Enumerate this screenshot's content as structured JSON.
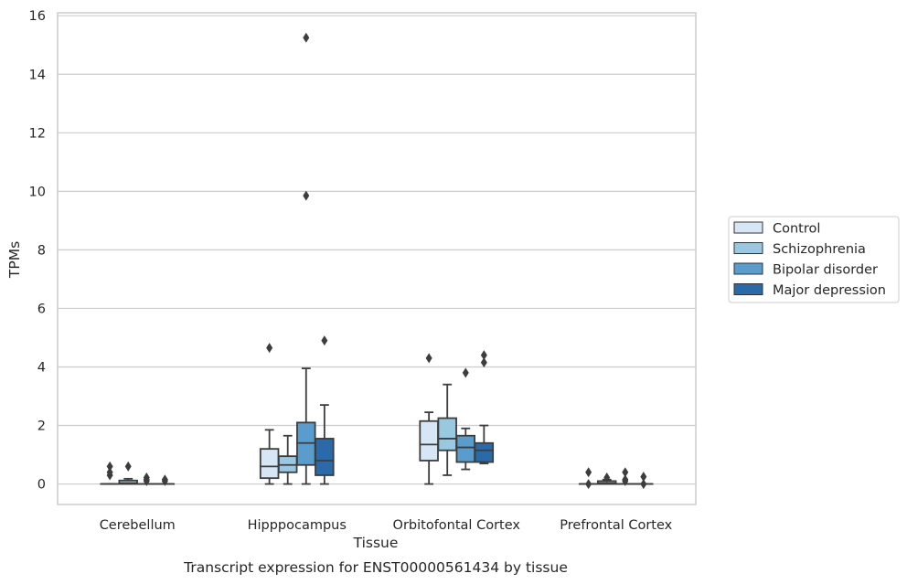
{
  "colors": {
    "background": "#ffffff",
    "grid": "#cccccc",
    "frame": "#cccccc",
    "box_line": "#3d3d3d"
  },
  "chart_data": {
    "type": "box",
    "title": "",
    "caption": "Transcript expression for ENST00000561434 by tissue",
    "xlabel": "Tissue",
    "ylabel": "TPMs",
    "ylim": [
      -0.7,
      16.1
    ],
    "yticks": [
      0,
      2,
      4,
      6,
      8,
      10,
      12,
      14,
      16
    ],
    "grid": true,
    "legend_position": "right",
    "categories": [
      "Cerebellum",
      "Hipppocampus",
      "Orbitofontal Cortex",
      "Prefrontal Cortex"
    ],
    "series": [
      {
        "name": "Control",
        "color": "#d6e6f4",
        "boxes": [
          {
            "whislo": 0.0,
            "q1": 0.0,
            "med": 0.0,
            "q3": 0.0,
            "whishi": 0.0,
            "fliers": [
              0.3,
              0.4,
              0.6
            ]
          },
          {
            "whislo": 0.0,
            "q1": 0.2,
            "med": 0.6,
            "q3": 1.2,
            "whishi": 1.85,
            "fliers": [
              4.65
            ]
          },
          {
            "whislo": 0.0,
            "q1": 0.8,
            "med": 1.35,
            "q3": 2.15,
            "whishi": 2.45,
            "fliers": [
              4.3
            ]
          },
          {
            "whislo": 0.0,
            "q1": 0.0,
            "med": 0.0,
            "q3": 0.0,
            "whishi": 0.0,
            "fliers": [
              0.0,
              0.4
            ]
          }
        ]
      },
      {
        "name": "Schizophrenia",
        "color": "#9ac8e0",
        "boxes": [
          {
            "whislo": 0.0,
            "q1": 0.0,
            "med": 0.03,
            "q3": 0.12,
            "whishi": 0.18,
            "fliers": [
              0.6
            ]
          },
          {
            "whislo": 0.0,
            "q1": 0.4,
            "med": 0.65,
            "q3": 0.95,
            "whishi": 1.65,
            "fliers": []
          },
          {
            "whislo": 0.3,
            "q1": 1.15,
            "med": 1.55,
            "q3": 2.25,
            "whishi": 3.4,
            "fliers": []
          },
          {
            "whislo": 0.0,
            "q1": 0.0,
            "med": 0.03,
            "q3": 0.1,
            "whishi": 0.15,
            "fliers": [
              0.22
            ]
          }
        ]
      },
      {
        "name": "Bipolar disorder",
        "color": "#5a9dcd",
        "boxes": [
          {
            "whislo": 0.0,
            "q1": 0.0,
            "med": 0.0,
            "q3": 0.0,
            "whishi": 0.0,
            "fliers": [
              0.1,
              0.15,
              0.22
            ]
          },
          {
            "whislo": 0.0,
            "q1": 0.65,
            "med": 1.4,
            "q3": 2.1,
            "whishi": 3.95,
            "fliers": [
              9.85,
              15.25
            ]
          },
          {
            "whislo": 0.5,
            "q1": 0.75,
            "med": 1.25,
            "q3": 1.65,
            "whishi": 1.9,
            "fliers": [
              3.8
            ]
          },
          {
            "whislo": 0.0,
            "q1": 0.0,
            "med": 0.0,
            "q3": 0.0,
            "whishi": 0.0,
            "fliers": [
              0.1,
              0.15,
              0.4
            ]
          }
        ]
      },
      {
        "name": "Major depression",
        "color": "#2b6aa8",
        "boxes": [
          {
            "whislo": 0.0,
            "q1": 0.0,
            "med": 0.0,
            "q3": 0.0,
            "whishi": 0.0,
            "fliers": [
              0.1,
              0.15
            ]
          },
          {
            "whislo": 0.0,
            "q1": 0.3,
            "med": 0.8,
            "q3": 1.55,
            "whishi": 2.7,
            "fliers": [
              4.9
            ]
          },
          {
            "whislo": 0.7,
            "q1": 0.75,
            "med": 1.15,
            "q3": 1.4,
            "whishi": 2.0,
            "fliers": [
              4.15,
              4.4
            ]
          },
          {
            "whislo": 0.0,
            "q1": 0.0,
            "med": 0.0,
            "q3": 0.0,
            "whishi": 0.0,
            "fliers": [
              0.0,
              0.25
            ]
          }
        ]
      }
    ]
  }
}
